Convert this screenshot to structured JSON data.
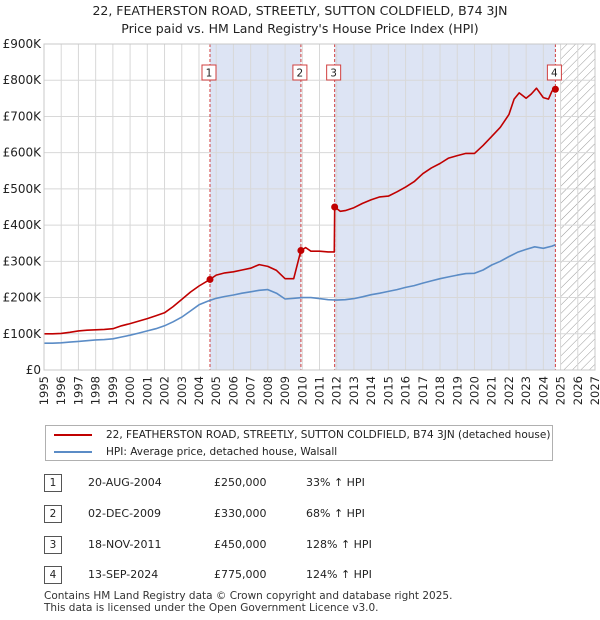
{
  "title": {
    "line1": "22, FEATHERSTON ROAD, STREETLY, SUTTON COLDFIELD, B74 3JN",
    "line2": "Price paid vs. HM Land Registry's House Price Index (HPI)"
  },
  "colors": {
    "property": "#c00000",
    "hpi": "#5b8cc6",
    "shade": "#dde4f4",
    "grid": "#d8d8d8",
    "marker_border": "#d04040",
    "hatch": "#999999"
  },
  "chart_data": {
    "type": "line",
    "title": "22, FEATHERSTON ROAD, STREETLY, SUTTON COLDFIELD, B74 3JN",
    "xlim": [
      1995,
      2027
    ],
    "ylim": [
      0,
      900000
    ],
    "yticks": [
      {
        "value": 0,
        "label": "£0"
      },
      {
        "value": 100000,
        "label": "£100K"
      },
      {
        "value": 200000,
        "label": "£200K"
      },
      {
        "value": 300000,
        "label": "£300K"
      },
      {
        "value": 400000,
        "label": "£400K"
      },
      {
        "value": 500000,
        "label": "£500K"
      },
      {
        "value": 600000,
        "label": "£600K"
      },
      {
        "value": 700000,
        "label": "£700K"
      },
      {
        "value": 800000,
        "label": "£800K"
      },
      {
        "value": 900000,
        "label": "£900K"
      }
    ],
    "xticks": [
      "1995",
      "1996",
      "1997",
      "1998",
      "1999",
      "2000",
      "2001",
      "2002",
      "2003",
      "2004",
      "2005",
      "2006",
      "2007",
      "2008",
      "2009",
      "2010",
      "2011",
      "2012",
      "2013",
      "2014",
      "2015",
      "2016",
      "2017",
      "2018",
      "2019",
      "2020",
      "2021",
      "2022",
      "2023",
      "2024",
      "2025",
      "2026",
      "2027"
    ],
    "shaded_ranges": [
      [
        2004.64,
        2009.92
      ],
      [
        2011.88,
        2024.7
      ]
    ],
    "hatched_from": 2025.0,
    "series": [
      {
        "name": "22, FEATHERSTON ROAD, STREETLY, SUTTON COLDFIELD, B74 3JN (detached house)",
        "x": [
          1995.0,
          1995.5,
          1996.0,
          1996.5,
          1997.0,
          1997.5,
          1998.0,
          1998.5,
          1999.0,
          1999.5,
          2000.0,
          2000.5,
          2001.0,
          2001.5,
          2002.0,
          2002.5,
          2003.0,
          2003.5,
          2004.0,
          2004.64,
          2005.0,
          2005.5,
          2006.0,
          2006.5,
          2007.0,
          2007.5,
          2008.0,
          2008.5,
          2009.0,
          2009.5,
          2009.92,
          2010.2,
          2010.5,
          2011.0,
          2011.5,
          2011.86,
          2011.88,
          2012.2,
          2012.5,
          2013.0,
          2013.5,
          2014.0,
          2014.5,
          2015.0,
          2015.5,
          2016.0,
          2016.5,
          2017.0,
          2017.5,
          2018.0,
          2018.5,
          2019.0,
          2019.5,
          2020.0,
          2020.5,
          2021.0,
          2021.5,
          2022.0,
          2022.3,
          2022.6,
          2023.0,
          2023.3,
          2023.6,
          2024.0,
          2024.3,
          2024.5,
          2024.7
        ],
        "values": [
          100000,
          100000,
          101000,
          104000,
          108000,
          110000,
          111000,
          112000,
          114000,
          122000,
          128000,
          135000,
          142000,
          150000,
          158000,
          175000,
          195000,
          215000,
          232000,
          250000,
          262000,
          268000,
          271000,
          276000,
          281000,
          291000,
          286000,
          275000,
          252000,
          252000,
          330000,
          338000,
          328000,
          328000,
          326000,
          326000,
          450000,
          438000,
          440000,
          448000,
          460000,
          470000,
          478000,
          480000,
          492000,
          505000,
          520000,
          542000,
          558000,
          570000,
          585000,
          592000,
          598000,
          598000,
          620000,
          645000,
          670000,
          705000,
          748000,
          765000,
          750000,
          762000,
          778000,
          752000,
          748000,
          770000,
          775000
        ]
      },
      {
        "name": "HPI: Average price, detached house, Walsall",
        "x": [
          1995.0,
          1995.5,
          1996.0,
          1996.5,
          1997.0,
          1997.5,
          1998.0,
          1998.5,
          1999.0,
          1999.5,
          2000.0,
          2000.5,
          2001.0,
          2001.5,
          2002.0,
          2002.5,
          2003.0,
          2003.5,
          2004.0,
          2004.5,
          2005.0,
          2005.5,
          2006.0,
          2006.5,
          2007.0,
          2007.5,
          2008.0,
          2008.5,
          2009.0,
          2009.5,
          2010.0,
          2010.5,
          2011.0,
          2011.5,
          2012.0,
          2012.5,
          2013.0,
          2013.5,
          2014.0,
          2014.5,
          2015.0,
          2015.5,
          2016.0,
          2016.5,
          2017.0,
          2017.5,
          2018.0,
          2018.5,
          2019.0,
          2019.5,
          2020.0,
          2020.5,
          2021.0,
          2021.5,
          2022.0,
          2022.5,
          2023.0,
          2023.5,
          2024.0,
          2024.5,
          2024.7
        ],
        "values": [
          74000,
          74000,
          75000,
          77000,
          79000,
          81000,
          83000,
          84000,
          86000,
          91000,
          96000,
          102000,
          108000,
          114000,
          122000,
          133000,
          146000,
          163000,
          180000,
          190000,
          198000,
          203000,
          207000,
          212000,
          216000,
          220000,
          222000,
          212000,
          196000,
          198000,
          200000,
          200000,
          197000,
          194000,
          193000,
          194000,
          197000,
          202000,
          208000,
          212000,
          217000,
          222000,
          228000,
          233000,
          240000,
          246000,
          252000,
          257000,
          262000,
          266000,
          267000,
          276000,
          290000,
          300000,
          313000,
          325000,
          333000,
          340000,
          336000,
          342000,
          346000
        ]
      }
    ],
    "sales": [
      {
        "label": "1",
        "x": 2004.64,
        "value": 250000
      },
      {
        "label": "2",
        "x": 2009.92,
        "value": 330000
      },
      {
        "label": "3",
        "x": 2011.88,
        "value": 450000
      },
      {
        "label": "4",
        "x": 2024.7,
        "value": 775000
      }
    ]
  },
  "legend": {
    "property": "22, FEATHERSTON ROAD, STREETLY, SUTTON COLDFIELD, B74 3JN (detached house)",
    "hpi": "HPI: Average price, detached house, Walsall"
  },
  "sales_table": [
    {
      "num": "1",
      "date": "20-AUG-2004",
      "price": "£250,000",
      "hpi": "33% ↑ HPI"
    },
    {
      "num": "2",
      "date": "02-DEC-2009",
      "price": "£330,000",
      "hpi": "68% ↑ HPI"
    },
    {
      "num": "3",
      "date": "18-NOV-2011",
      "price": "£450,000",
      "hpi": "128% ↑ HPI"
    },
    {
      "num": "4",
      "date": "13-SEP-2024",
      "price": "£775,000",
      "hpi": "124% ↑ HPI"
    }
  ],
  "footer": {
    "line1": "Contains HM Land Registry data © Crown copyright and database right 2025.",
    "line2": "This data is licensed under the Open Government Licence v3.0."
  }
}
